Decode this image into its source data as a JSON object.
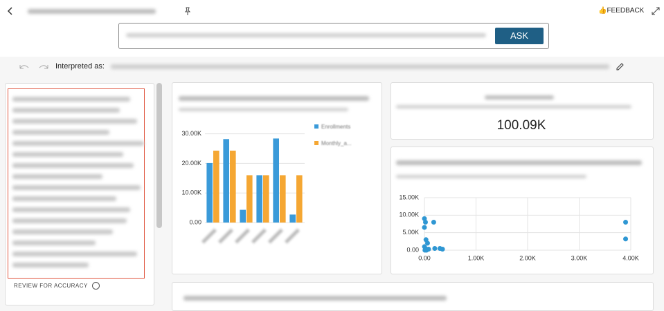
{
  "header": {
    "feedback": "FEEDBACK",
    "ask": "ASK",
    "interpreted": "Interpreted as:"
  },
  "review": "REVIEW FOR ACCURACY",
  "kpi": {
    "value": "100.09K"
  },
  "bar_chart": {
    "type": "bar",
    "categories": [
      null,
      null,
      null,
      null,
      null,
      null
    ],
    "series": [
      {
        "name": "Enrollments",
        "color": "#3a9ad9",
        "values": [
          20100,
          28200,
          4300,
          16000,
          28400,
          2700
        ]
      },
      {
        "name": "Monthly_a...",
        "color": "#f5a733",
        "values": [
          24300,
          24300,
          16000,
          16000,
          16000,
          16000
        ]
      }
    ],
    "ylim": [
      0,
      32000
    ],
    "yticks": [
      {
        "value": 0,
        "label": "0.00"
      },
      {
        "value": 10000,
        "label": "10.00K"
      },
      {
        "value": 20000,
        "label": "20.00K"
      },
      {
        "value": 30000,
        "label": "30.00K"
      }
    ],
    "grid": true
  },
  "scatter_chart": {
    "type": "scatter",
    "color": "#2f97d3",
    "x": [
      0,
      20,
      180,
      0,
      30,
      60,
      0,
      20,
      80,
      200,
      300,
      350,
      3900,
      3900,
      40,
      10
    ],
    "values": [
      9000,
      8000,
      8000,
      6500,
      3000,
      2000,
      1000,
      500,
      300,
      500,
      500,
      300,
      8000,
      3200,
      0,
      0
    ],
    "xlim": [
      0,
      4000
    ],
    "ylim": [
      0,
      15000
    ],
    "xticks": [
      {
        "value": 0,
        "label": "0.00"
      },
      {
        "value": 1000,
        "label": "1.00K"
      },
      {
        "value": 2000,
        "label": "2.00K"
      },
      {
        "value": 3000,
        "label": "3.00K"
      },
      {
        "value": 4000,
        "label": "4.00K"
      }
    ],
    "yticks": [
      {
        "value": 0,
        "label": "0.00"
      },
      {
        "value": 5000,
        "label": "5.00K"
      },
      {
        "value": 10000,
        "label": "10.00K"
      },
      {
        "value": 15000,
        "label": "15.00K"
      }
    ],
    "grid": true
  }
}
